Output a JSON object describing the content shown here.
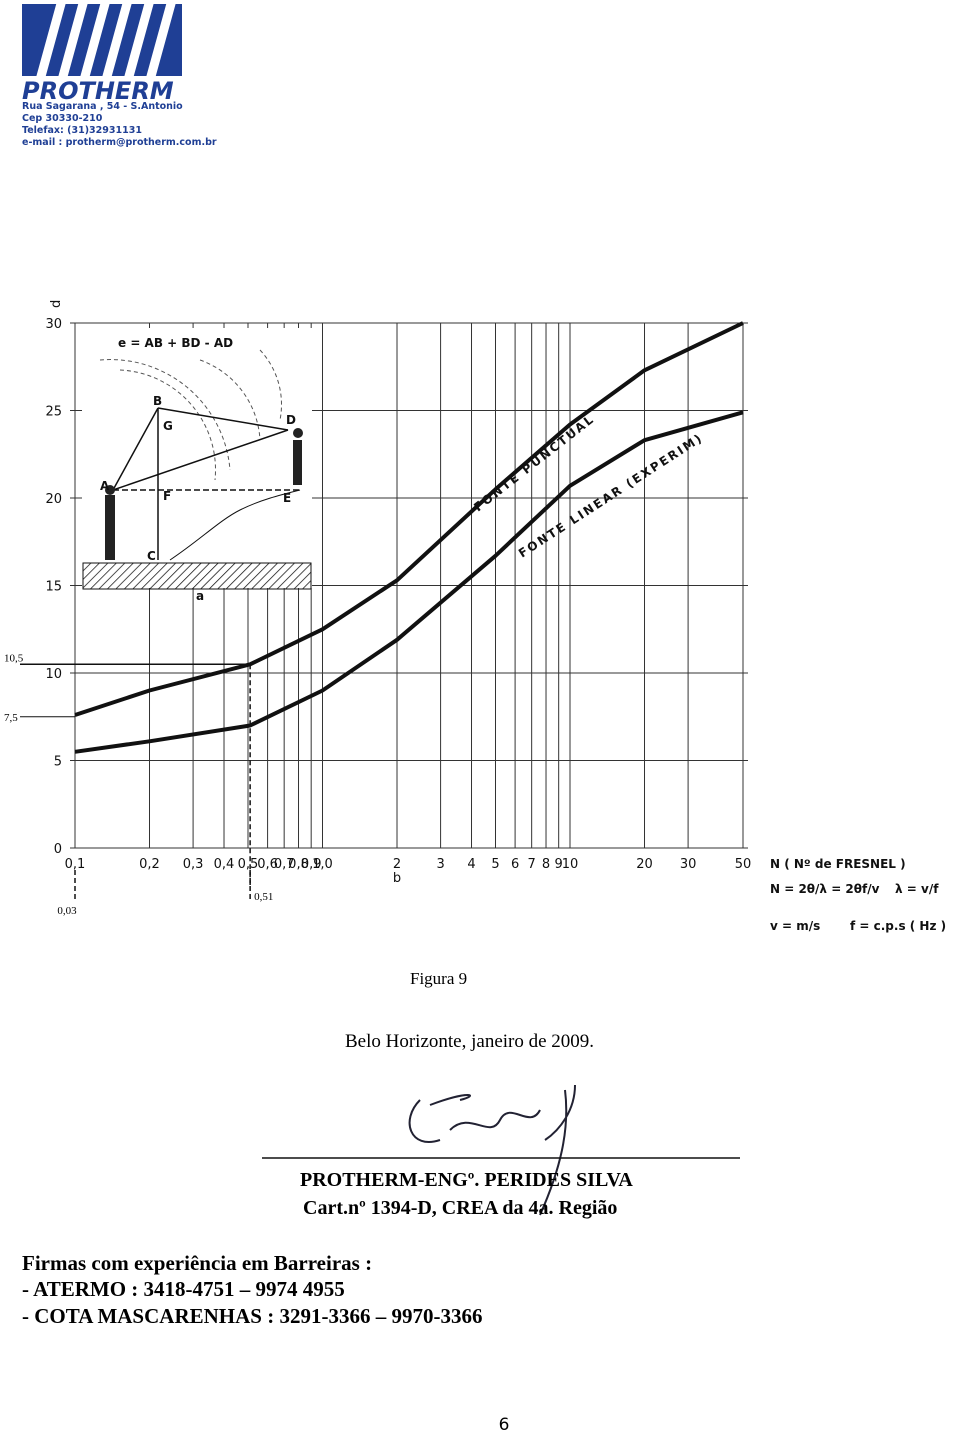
{
  "header": {
    "logo": "PROTHERM",
    "address": [
      "Rua Sagarana , 54 - S.Antonio",
      "Cep 30330-210",
      "Telefax: (31)32931131",
      "e-mail : protherm@protherm.com.br"
    ]
  },
  "chart_data": {
    "type": "line",
    "y_label": "d",
    "x_label": "b",
    "inset_label": "a",
    "formula_title": "e = AB + BD - AD",
    "inset_points": [
      "A",
      "B",
      "C",
      "D",
      "E",
      "F",
      "G"
    ],
    "x_log": true,
    "grid": true,
    "xlim": [
      0.1,
      50
    ],
    "ylim": [
      0,
      30
    ],
    "yticks": [
      0,
      5,
      10,
      15,
      20,
      25,
      30
    ],
    "xticks": [
      {
        "value": 0.1,
        "label": "0,1"
      },
      {
        "value": 0.2,
        "label": "0,2"
      },
      {
        "value": 0.3,
        "label": "0,3"
      },
      {
        "value": 0.4,
        "label": "0,4"
      },
      {
        "value": 0.5,
        "label": "0,5"
      },
      {
        "value": 0.6,
        "label": "0,6"
      },
      {
        "value": 0.7,
        "label": "0,7"
      },
      {
        "value": 0.8,
        "label": "0,8"
      },
      {
        "value": 0.9,
        "label": "0,9"
      },
      {
        "value": 1,
        "label": "1,0"
      },
      2,
      3,
      4,
      5,
      6,
      7,
      8,
      9,
      10,
      20,
      30,
      50
    ],
    "x": [
      0.1,
      0.2,
      0.51,
      1,
      2,
      5,
      10,
      20,
      50
    ],
    "series": [
      {
        "name": "FONTE PUNCTUAL",
        "color": "#111111",
        "values": [
          7.6,
          9.0,
          10.5,
          12.5,
          15.3,
          20.5,
          24.2,
          27.3,
          30
        ]
      },
      {
        "name": "FONTE LINEAR (EXPERIM)",
        "color": "#111111",
        "values": [
          5.5,
          6.1,
          7.0,
          9.0,
          11.9,
          16.7,
          20.7,
          23.3,
          24.9
        ]
      }
    ],
    "annotations": [
      {
        "text": "10,5",
        "y": 10.5,
        "x": 0.51
      },
      {
        "text": "7,5",
        "y": 7.5
      },
      {
        "text": "0,51",
        "x": 0.51
      },
      {
        "text": "0,03",
        "x": 0.1
      }
    ],
    "fresnel": {
      "title": "N ( Nº de FRESNEL )",
      "formula": "N = 2θ/λ = 2θf/v",
      "lambda": "λ = v/f",
      "v_unit": "v = m/s",
      "f_unit": "f = c.p.s ( Hz )"
    }
  },
  "caption": "Figura 9",
  "place_date": "Belo Horizonte, janeiro de 2009.",
  "signature": {
    "name": "PROTHERM-ENGº. PERIDES SILVA",
    "registration": "Cart.nº 1394-D, CREA da 4a. Região"
  },
  "firms": {
    "title": "Firmas com experiência em Barreiras :",
    "items": [
      "- ATERMO : 3418-4751 – 9974 4955",
      "- COTA MASCARENHAS : 3291-3366 – 9970-3366"
    ]
  },
  "page_number": "6"
}
